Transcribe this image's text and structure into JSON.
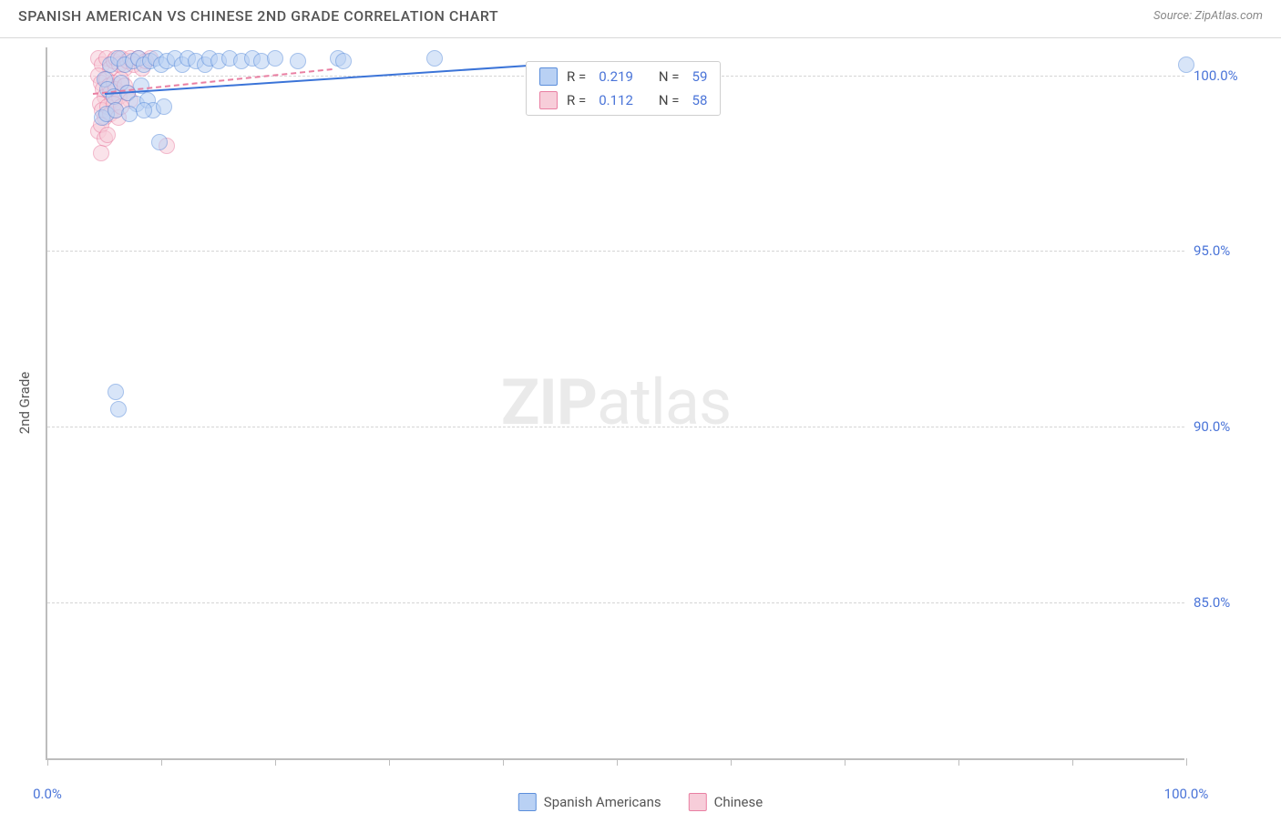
{
  "header": {
    "title": "SPANISH AMERICAN VS CHINESE 2ND GRADE CORRELATION CHART",
    "source": "Source: ZipAtlas.com"
  },
  "chart": {
    "type": "scatter",
    "y_axis_title": "2nd Grade",
    "watermark_bold": "ZIP",
    "watermark_rest": "atlas",
    "background_color": "#ffffff",
    "grid_color": "#d5d5d5",
    "axis_color": "#bdbdbd",
    "label_color": "#4a74d8",
    "xlim": [
      0,
      100
    ],
    "ylim": [
      80.5,
      100.8
    ],
    "x_ticks": [
      0,
      10,
      20,
      30,
      40,
      50,
      60,
      70,
      80,
      90,
      100
    ],
    "x_tick_labels": {
      "0": "0.0%",
      "100": "100.0%"
    },
    "y_ticks": [
      85,
      90,
      95,
      100
    ],
    "y_tick_labels": {
      "85": "85.0%",
      "90": "90.0%",
      "95": "95.0%",
      "100": "100.0%"
    },
    "point_radius": 9,
    "series": {
      "blue": {
        "name": "Spanish Americans",
        "fill": "#b9d1f4",
        "stroke": "#5b8edb",
        "R": "0.219",
        "N": "59",
        "regression": {
          "x1": 5,
          "y1": 99.5,
          "x2": 42,
          "y2": 100.3,
          "width": 2,
          "dash": "solid"
        },
        "points": [
          [
            5.5,
            100.3
          ],
          [
            6.2,
            100.5
          ],
          [
            6.8,
            100.3
          ],
          [
            7.5,
            100.4
          ],
          [
            8.0,
            100.5
          ],
          [
            8.5,
            100.3
          ],
          [
            9.0,
            100.4
          ],
          [
            9.5,
            100.5
          ],
          [
            10.0,
            100.3
          ],
          [
            10.5,
            100.4
          ],
          [
            11.2,
            100.5
          ],
          [
            11.8,
            100.3
          ],
          [
            12.3,
            100.5
          ],
          [
            13.0,
            100.4
          ],
          [
            13.8,
            100.3
          ],
          [
            14.2,
            100.5
          ],
          [
            15.0,
            100.4
          ],
          [
            16.0,
            100.5
          ],
          [
            17.0,
            100.4
          ],
          [
            18.0,
            100.5
          ],
          [
            18.8,
            100.4
          ],
          [
            20.0,
            100.5
          ],
          [
            22.0,
            100.4
          ],
          [
            25.5,
            100.5
          ],
          [
            26.0,
            100.4
          ],
          [
            34.0,
            100.5
          ],
          [
            100.0,
            100.3
          ],
          [
            5.0,
            99.9
          ],
          [
            5.3,
            99.6
          ],
          [
            5.8,
            99.4
          ],
          [
            6.5,
            99.8
          ],
          [
            7.0,
            99.5
          ],
          [
            7.8,
            99.2
          ],
          [
            8.2,
            99.7
          ],
          [
            8.8,
            99.3
          ],
          [
            9.3,
            99.0
          ],
          [
            10.2,
            99.1
          ],
          [
            4.8,
            98.8
          ],
          [
            5.2,
            98.9
          ],
          [
            6.0,
            99.0
          ],
          [
            7.2,
            98.9
          ],
          [
            8.5,
            99.0
          ],
          [
            9.8,
            98.1
          ],
          [
            6.0,
            91.0
          ],
          [
            6.2,
            90.5
          ]
        ]
      },
      "pink": {
        "name": "Chinese",
        "fill": "#f7cdd9",
        "stroke": "#e97fa2",
        "R": "0.112",
        "N": "58",
        "regression": {
          "x1": 4,
          "y1": 99.5,
          "x2": 25,
          "y2": 100.2,
          "width": 2,
          "dash": "dashed"
        },
        "points": [
          [
            4.5,
            100.5
          ],
          [
            4.8,
            100.3
          ],
          [
            5.2,
            100.5
          ],
          [
            5.5,
            100.2
          ],
          [
            5.8,
            100.4
          ],
          [
            6.0,
            100.5
          ],
          [
            6.3,
            100.3
          ],
          [
            6.5,
            100.5
          ],
          [
            6.8,
            100.2
          ],
          [
            7.0,
            100.4
          ],
          [
            7.3,
            100.5
          ],
          [
            7.6,
            100.3
          ],
          [
            8.0,
            100.5
          ],
          [
            8.3,
            100.2
          ],
          [
            8.6,
            100.4
          ],
          [
            9.0,
            100.5
          ],
          [
            4.5,
            100.0
          ],
          [
            4.7,
            99.8
          ],
          [
            4.9,
            99.6
          ],
          [
            5.0,
            99.4
          ],
          [
            5.2,
            99.9
          ],
          [
            5.4,
            99.7
          ],
          [
            5.5,
            99.5
          ],
          [
            5.7,
            99.3
          ],
          [
            5.8,
            99.8
          ],
          [
            6.0,
            99.6
          ],
          [
            6.3,
            99.4
          ],
          [
            6.5,
            99.9
          ],
          [
            6.8,
            99.7
          ],
          [
            7.0,
            99.5
          ],
          [
            7.3,
            99.3
          ],
          [
            4.6,
            99.2
          ],
          [
            4.8,
            99.0
          ],
          [
            5.0,
            98.8
          ],
          [
            5.3,
            99.1
          ],
          [
            5.5,
            98.9
          ],
          [
            5.8,
            99.2
          ],
          [
            6.0,
            99.0
          ],
          [
            6.2,
            98.8
          ],
          [
            6.5,
            99.1
          ],
          [
            4.5,
            98.4
          ],
          [
            4.7,
            98.6
          ],
          [
            5.0,
            98.2
          ],
          [
            5.3,
            98.3
          ],
          [
            4.7,
            97.8
          ],
          [
            10.5,
            98.0
          ]
        ]
      }
    },
    "stats_box": {
      "left_pct": 42,
      "top_y": 100.3
    },
    "legend": {
      "series1_label": "Spanish Americans",
      "series2_label": "Chinese"
    },
    "R_prefix": "R = ",
    "N_prefix": "N = "
  }
}
